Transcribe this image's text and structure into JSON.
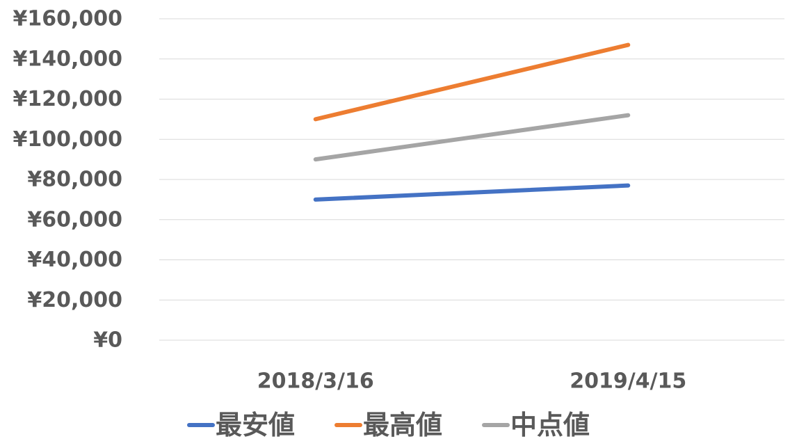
{
  "chart_data": {
    "type": "line",
    "categories": [
      "2018/3/16",
      "2019/4/15"
    ],
    "series": [
      {
        "name": "最安値",
        "values": [
          70000,
          77000
        ],
        "color": "#4472C4"
      },
      {
        "name": "最高値",
        "values": [
          110000,
          147000
        ],
        "color": "#ED7D31"
      },
      {
        "name": "中点値",
        "values": [
          90000,
          112000
        ],
        "color": "#A5A5A5"
      }
    ],
    "y_ticks": [
      "¥0",
      "¥20,000",
      "¥40,000",
      "¥60,000",
      "¥80,000",
      "¥100,000",
      "¥120,000",
      "¥140,000",
      "¥160,000"
    ],
    "ylim": [
      0,
      160000
    ],
    "grid": true,
    "legend_position": "bottom"
  }
}
